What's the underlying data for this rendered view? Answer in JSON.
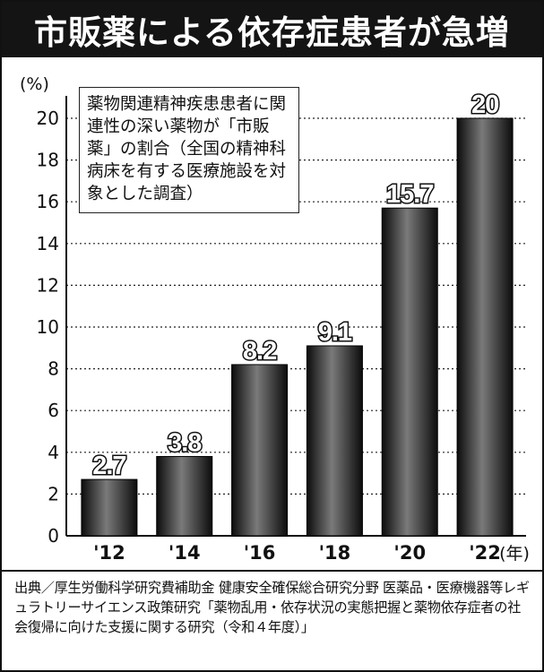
{
  "title": "市販薬による依存症患者が急増",
  "note": "薬物関連精神疾患患者に関連性の深い薬物が「市販薬」の割合（全国の精神科病床を有する医療施設を対象とした調査）",
  "source": "出典／厚生労働科学研究費補助金 健康安全確保総合研究分野 医薬品・医療機器等レギュラトリーサイエンス政策研究「薬物乱用・依存状況の実態把握と薬物依存症者の社会復帰に向けた支援に関する研究（令和４年度）」",
  "colors": {
    "title_bg": "#141414",
    "bar_dark": "#0c0c0c",
    "bar_light": "#7a7a7a",
    "grid": "#222222"
  },
  "chart_data": {
    "type": "bar",
    "categories": [
      "'12",
      "'14",
      "'16",
      "'18",
      "'20",
      "'22"
    ],
    "values": [
      2.7,
      3.8,
      8.2,
      9.1,
      15.7,
      20
    ],
    "value_labels": [
      "2.7",
      "3.8",
      "8.2",
      "9.1",
      "15.7",
      "20"
    ],
    "y_unit": "(%)",
    "x_unit": "(年)",
    "ylim": [
      0,
      20
    ],
    "yticks": [
      0,
      2,
      4,
      6,
      8,
      10,
      12,
      14,
      16,
      18,
      20
    ],
    "grid": "horizontal dotted"
  }
}
